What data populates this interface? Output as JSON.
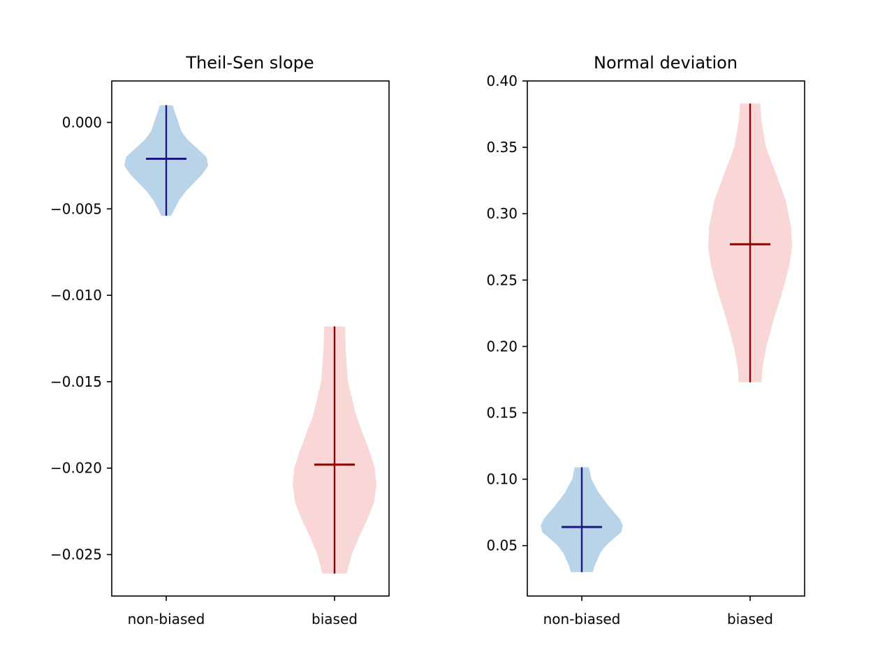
{
  "chart_data": [
    {
      "type": "violin",
      "title": "Theil-Sen slope",
      "categories": [
        "non-biased",
        "biased"
      ],
      "ylim": [
        -0.0274,
        0.0024
      ],
      "yticks": [
        0.0,
        -0.005,
        -0.01,
        -0.015,
        -0.02,
        -0.025
      ],
      "ytick_labels": [
        "0.000",
        "−0.005",
        "−0.010",
        "−0.015",
        "−0.020",
        "−0.025"
      ],
      "series": [
        {
          "min": -0.0054,
          "max": 0.001,
          "median": -0.0021,
          "color": "#b9d4e8",
          "line_color": "#1a1a80",
          "density": [
            [
              0.001,
              0.15
            ],
            [
              0.0005,
              0.22
            ],
            [
              0.0,
              0.29
            ],
            [
              -0.0005,
              0.36
            ],
            [
              -0.001,
              0.51
            ],
            [
              -0.0015,
              0.74
            ],
            [
              -0.002,
              0.96
            ],
            [
              -0.0025,
              1.0
            ],
            [
              -0.003,
              0.86
            ],
            [
              -0.0035,
              0.66
            ],
            [
              -0.004,
              0.46
            ],
            [
              -0.0045,
              0.31
            ],
            [
              -0.005,
              0.2
            ],
            [
              -0.0054,
              0.12
            ]
          ]
        },
        {
          "min": -0.0261,
          "max": -0.0118,
          "median": -0.0198,
          "color": "#f9d7d7",
          "line_color": "#8b0000",
          "density": [
            [
              -0.0118,
              0.25
            ],
            [
              -0.013,
              0.26
            ],
            [
              -0.015,
              0.32
            ],
            [
              -0.017,
              0.52
            ],
            [
              -0.019,
              0.83
            ],
            [
              -0.02,
              0.96
            ],
            [
              -0.021,
              1.0
            ],
            [
              -0.022,
              0.94
            ],
            [
              -0.023,
              0.78
            ],
            [
              -0.024,
              0.58
            ],
            [
              -0.025,
              0.41
            ],
            [
              -0.0261,
              0.29
            ]
          ]
        }
      ]
    },
    {
      "type": "violin",
      "title": "Normal deviation",
      "categories": [
        "non-biased",
        "biased"
      ],
      "ylim": [
        0.012,
        0.4
      ],
      "yticks": [
        0.05,
        0.1,
        0.15,
        0.2,
        0.25,
        0.3,
        0.35,
        0.4
      ],
      "ytick_labels": [
        "0.05",
        "0.10",
        "0.15",
        "0.20",
        "0.25",
        "0.30",
        "0.35",
        "0.40"
      ],
      "series": [
        {
          "min": 0.03,
          "max": 0.109,
          "median": 0.064,
          "color": "#b9d4e8",
          "line_color": "#1a1a80",
          "density": [
            [
              0.109,
              0.17
            ],
            [
              0.1,
              0.23
            ],
            [
              0.09,
              0.4
            ],
            [
              0.08,
              0.64
            ],
            [
              0.07,
              0.91
            ],
            [
              0.065,
              0.98
            ],
            [
              0.06,
              0.94
            ],
            [
              0.055,
              0.75
            ],
            [
              0.05,
              0.58
            ],
            [
              0.045,
              0.45
            ],
            [
              0.04,
              0.38
            ],
            [
              0.035,
              0.31
            ],
            [
              0.03,
              0.26
            ]
          ]
        },
        {
          "min": 0.173,
          "max": 0.383,
          "median": 0.277,
          "color": "#f9d7d7",
          "line_color": "#8b0000",
          "density": [
            [
              0.383,
              0.24
            ],
            [
              0.37,
              0.27
            ],
            [
              0.35,
              0.38
            ],
            [
              0.33,
              0.62
            ],
            [
              0.31,
              0.85
            ],
            [
              0.29,
              0.98
            ],
            [
              0.275,
              1.0
            ],
            [
              0.26,
              0.93
            ],
            [
              0.24,
              0.76
            ],
            [
              0.22,
              0.56
            ],
            [
              0.2,
              0.39
            ],
            [
              0.185,
              0.3
            ],
            [
              0.173,
              0.27
            ]
          ]
        }
      ]
    }
  ]
}
